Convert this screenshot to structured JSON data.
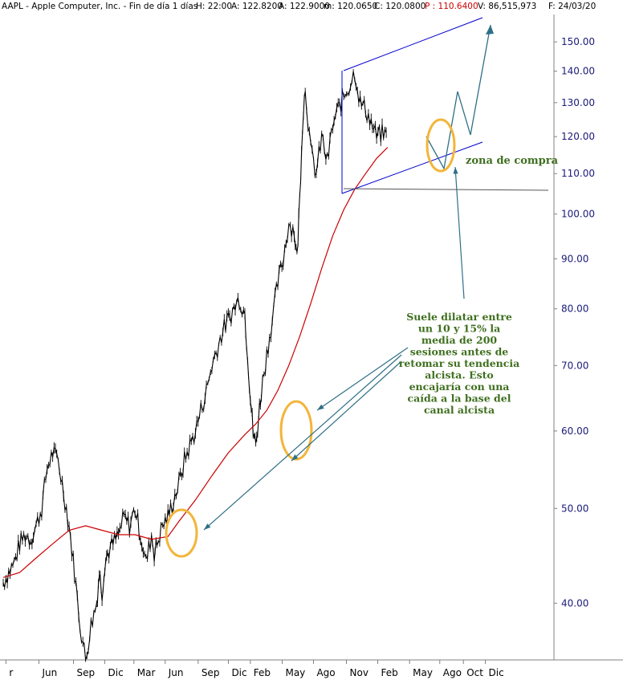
{
  "header": {
    "symbol": "AAPL - Apple Computer, Inc. - Fin de día 1 días",
    "high": "H: 22:00",
    "ask": "A: 122.8200",
    "field3": "A: 122.9000",
    "low": "m: 120.0650",
    "close": "C: 120.0800",
    "prev": "P : 110.6400",
    "volume": "V: 86,515,973",
    "date": "F: 24/03/20"
  },
  "colors": {
    "price": "#000000",
    "ma": "#cc0000",
    "channel": "#0000cc",
    "arrow": "#2f6f86",
    "circle": "#f3b53a",
    "note_text": "#3f6f1f",
    "axis_text": "#1a1a7a"
  },
  "chart_data": {
    "type": "line",
    "title": "",
    "xlabel": "",
    "ylabel": "",
    "y_scale": "log",
    "ylim": [
      35,
      160
    ],
    "y_ticks": [
      40,
      50,
      60,
      70,
      80,
      90,
      100,
      110,
      120,
      130,
      140,
      150
    ],
    "y_tick_labels": [
      "40.00",
      "50.00",
      "60.00",
      "70.00",
      "80.00",
      "90.00",
      "100.00",
      "110.00",
      "120.00",
      "130.00",
      "140.00",
      "150.00"
    ],
    "x_tick_labels": [
      "r",
      "Jun",
      "Sep",
      "Dic",
      "Mar",
      "Jun",
      "Sep",
      "Dic",
      "Feb",
      "May",
      "Ago",
      "Nov",
      "Feb",
      "May",
      "Ago",
      "Oct",
      "Dic"
    ],
    "x_tick_positions": [
      0.005,
      0.065,
      0.128,
      0.185,
      0.238,
      0.295,
      0.355,
      0.41,
      0.45,
      0.508,
      0.565,
      0.625,
      0.682,
      0.74,
      0.795,
      0.838,
      0.878
    ],
    "series": [
      {
        "key": "price",
        "x": [
          0.0,
          0.01,
          0.02,
          0.03,
          0.04,
          0.05,
          0.06,
          0.07,
          0.08,
          0.09,
          0.1,
          0.11,
          0.12,
          0.13,
          0.14,
          0.15,
          0.16,
          0.17,
          0.175,
          0.18,
          0.185,
          0.19,
          0.2,
          0.21,
          0.22,
          0.23,
          0.24,
          0.25,
          0.26,
          0.27,
          0.275,
          0.28,
          0.29,
          0.3,
          0.31,
          0.32,
          0.33,
          0.34,
          0.35,
          0.36,
          0.37,
          0.38,
          0.39,
          0.4,
          0.41,
          0.42,
          0.43,
          0.44,
          0.445,
          0.45,
          0.455,
          0.46,
          0.465,
          0.47,
          0.48,
          0.49,
          0.5,
          0.51,
          0.52,
          0.53,
          0.535,
          0.54,
          0.545,
          0.55,
          0.56,
          0.57,
          0.58,
          0.59,
          0.6,
          0.61,
          0.62,
          0.63,
          0.64,
          0.65,
          0.66,
          0.67,
          0.68,
          0.69,
          0.7
        ],
        "values": [
          42,
          43,
          44,
          46,
          47,
          46.5,
          48,
          50,
          55,
          57,
          56,
          52,
          48,
          43,
          38,
          35,
          38,
          40,
          43,
          41,
          44,
          45,
          46,
          47,
          49,
          48,
          50,
          47,
          44,
          47,
          45,
          46,
          48,
          49,
          51,
          53,
          56,
          58,
          60,
          63,
          66,
          70,
          73,
          76,
          78,
          80,
          82,
          79,
          72,
          65,
          60,
          58,
          62,
          66,
          72,
          78,
          85,
          90,
          98,
          96,
          90,
          104,
          124,
          135,
          116,
          110,
          120,
          113,
          123,
          128,
          132,
          135,
          140,
          130,
          128,
          124,
          120,
          121,
          120
        ]
      },
      {
        "key": "ma200",
        "x": [
          0.0,
          0.03,
          0.06,
          0.09,
          0.12,
          0.15,
          0.18,
          0.21,
          0.24,
          0.27,
          0.3,
          0.32,
          0.35,
          0.38,
          0.41,
          0.44,
          0.46,
          0.48,
          0.5,
          0.52,
          0.54,
          0.56,
          0.58,
          0.6,
          0.62,
          0.64,
          0.66,
          0.68,
          0.7
        ],
        "values": [
          42.5,
          43,
          44.5,
          46,
          47.5,
          48,
          47.5,
          47,
          47,
          46.5,
          46.8,
          48.5,
          51,
          54,
          57,
          59.5,
          61,
          63,
          66,
          70,
          75,
          81,
          88,
          95,
          101,
          106,
          110,
          114,
          117
        ]
      }
    ],
    "annotations": {
      "zona_label": "zona de compra",
      "note_lines": [
        "Suele dilatar entre",
        "un 10 y 15% la",
        "media de 200",
        "sesiones antes de",
        "retomar su tendencia",
        "alcista. Esto",
        "encajaría con una",
        "caída a la base del",
        "canal alcista"
      ]
    }
  }
}
